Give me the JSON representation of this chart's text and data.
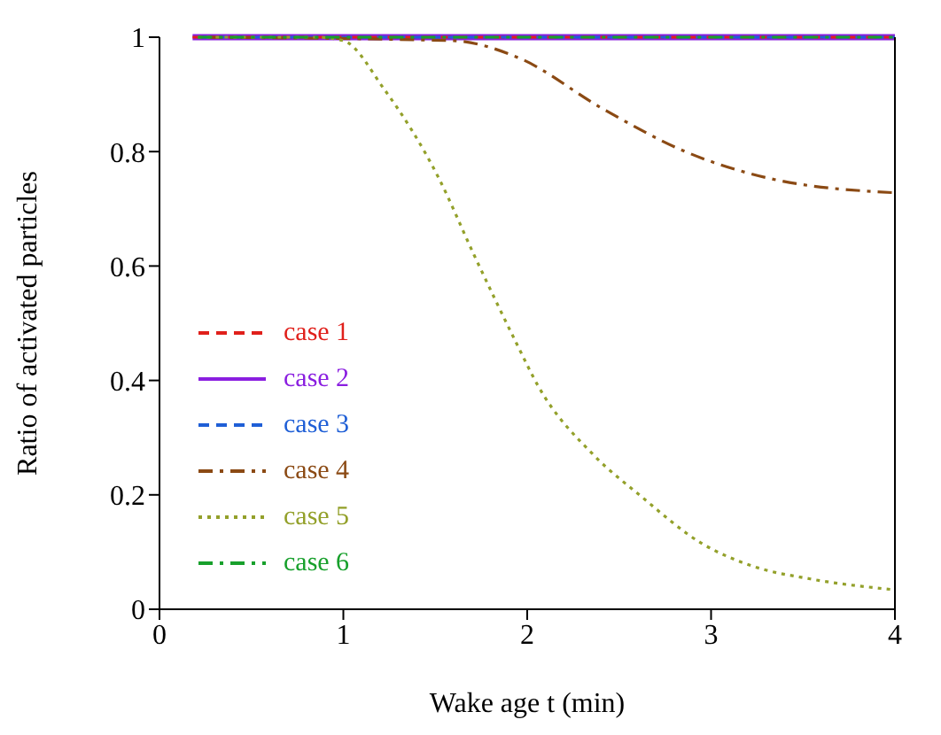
{
  "chart_data": {
    "type": "line",
    "xlabel": "Wake age t (min)",
    "ylabel": "Ratio of activated particles",
    "xlim": [
      0,
      4
    ],
    "xticks": [
      0,
      1,
      2,
      3,
      4
    ],
    "ylim": [
      0,
      1
    ],
    "yticks": [
      0,
      0.2,
      0.4,
      0.6,
      0.8,
      1
    ],
    "grid": false,
    "legend": "bottom left",
    "marker": "none",
    "series": [
      {
        "name": "case 1",
        "color": "#e0201b",
        "line_style": "dashed",
        "x": [
          0.18,
          4
        ],
        "values": [
          1,
          1
        ]
      },
      {
        "name": "case 2",
        "color": "#8a1ee0",
        "line_style": "solid",
        "x": [
          0.18,
          4
        ],
        "values": [
          1,
          1
        ]
      },
      {
        "name": "case 3",
        "color": "#1f5fd6",
        "line_style": "dashed",
        "x": [
          0.18,
          4
        ],
        "values": [
          1,
          1
        ]
      },
      {
        "name": "case 4",
        "color": "#8b4a14",
        "line_style": "dashdot",
        "x": [
          0.18,
          1.59,
          1.96,
          2.4,
          2.86,
          3.32,
          4
        ],
        "values": [
          1,
          0.994,
          0.963,
          0.877,
          0.8,
          0.753,
          0.728
        ]
      },
      {
        "name": "case 5",
        "color": "#93a02a",
        "line_style": "dotted",
        "x": [
          0.18,
          0.85,
          1,
          1.22,
          1.52,
          1.71,
          1.94,
          2.06,
          2.36,
          2.61,
          2.95,
          3.23,
          3.54,
          4
        ],
        "values": [
          1,
          1,
          0.994,
          0.91,
          0.753,
          0.62,
          0.466,
          0.39,
          0.27,
          0.2,
          0.115,
          0.075,
          0.053,
          0.034
        ]
      },
      {
        "name": "case 6",
        "color": "#18a02c",
        "line_style": "dashdot",
        "x": [
          0.18,
          4
        ],
        "values": [
          1,
          1
        ]
      }
    ]
  }
}
